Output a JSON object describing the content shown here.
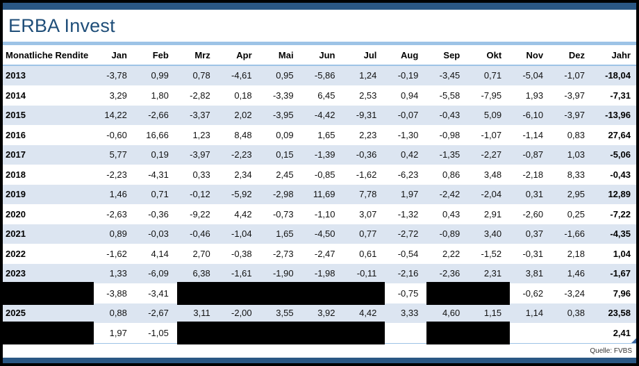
{
  "title": "ERBA Invest",
  "source_note": "Quelle: FVBS",
  "colors": {
    "navy_bar": "#2A5784",
    "title_text": "#1F4E79",
    "divider_blue": "#9DC3E6",
    "stripe_row": "#DCE5F1",
    "white_row": "#FFFFFF",
    "redaction": "#000000"
  },
  "chart_data": {
    "type": "table",
    "title": "Monatliche Rendite",
    "columns": [
      "Monatliche Rendite",
      "Jan",
      "Feb",
      "Mrz",
      "Apr",
      "Mai",
      "Jun",
      "Jul",
      "Aug",
      "Sep",
      "Okt",
      "Nov",
      "Dez",
      "Jahr"
    ],
    "redaction_note": "null month/year values are covered by black redaction bars; empty strings are blank cells",
    "rows": [
      {
        "year": "2013",
        "months": [
          "-3,78",
          "0,99",
          "0,78",
          "-4,61",
          "0,95",
          "-5,86",
          "1,24",
          "-0,19",
          "-3,45",
          "0,71",
          "-5,04",
          "-1,07"
        ],
        "jahr": "-18,04"
      },
      {
        "year": "2014",
        "months": [
          "3,29",
          "1,80",
          "-2,82",
          "0,18",
          "-3,39",
          "6,45",
          "2,53",
          "0,94",
          "-5,58",
          "-7,95",
          "1,93",
          "-3,97"
        ],
        "jahr": "-7,31"
      },
      {
        "year": "2015",
        "months": [
          "14,22",
          "-2,66",
          "-3,37",
          "2,02",
          "-3,95",
          "-4,42",
          "-9,31",
          "-0,07",
          "-0,43",
          "5,09",
          "-6,10",
          "-3,97"
        ],
        "jahr": "-13,96"
      },
      {
        "year": "2016",
        "months": [
          "-0,60",
          "16,66",
          "1,23",
          "8,48",
          "0,09",
          "1,65",
          "2,23",
          "-1,30",
          "-0,98",
          "-1,07",
          "-1,14",
          "0,83"
        ],
        "jahr": "27,64"
      },
      {
        "year": "2017",
        "months": [
          "5,77",
          "0,19",
          "-3,97",
          "-2,23",
          "0,15",
          "-1,39",
          "-0,36",
          "0,42",
          "-1,35",
          "-2,27",
          "-0,87",
          "1,03"
        ],
        "jahr": "-5,06"
      },
      {
        "year": "2018",
        "months": [
          "-2,23",
          "-4,31",
          "0,33",
          "2,34",
          "2,45",
          "-0,85",
          "-1,62",
          "-6,23",
          "0,86",
          "3,48",
          "-2,18",
          "8,33"
        ],
        "jahr": "-0,43"
      },
      {
        "year": "2019",
        "months": [
          "1,46",
          "0,71",
          "-0,12",
          "-5,92",
          "-2,98",
          "11,69",
          "7,78",
          "1,97",
          "-2,42",
          "-2,04",
          "0,31",
          "2,95"
        ],
        "jahr": "12,89"
      },
      {
        "year": "2020",
        "months": [
          "-2,63",
          "-0,36",
          "-9,22",
          "4,42",
          "-0,73",
          "-1,10",
          "3,07",
          "-1,32",
          "0,43",
          "2,91",
          "-2,60",
          "0,25"
        ],
        "jahr": "-7,22"
      },
      {
        "year": "2021",
        "months": [
          "0,89",
          "-0,03",
          "-0,46",
          "-1,04",
          "1,65",
          "-4,50",
          "0,77",
          "-2,72",
          "-0,89",
          "3,40",
          "0,37",
          "-1,66"
        ],
        "jahr": "-4,35"
      },
      {
        "year": "2022",
        "months": [
          "-1,62",
          "4,14",
          "2,70",
          "-0,38",
          "-2,73",
          "-2,47",
          "0,61",
          "-0,54",
          "2,22",
          "-1,52",
          "-0,31",
          "2,18"
        ],
        "jahr": "1,04"
      },
      {
        "year": "2023",
        "months": [
          "1,33",
          "-6,09",
          "6,38",
          "-1,61",
          "-1,90",
          "-1,98",
          "-0,11",
          "-2,16",
          "-2,36",
          "2,31",
          "3,81",
          "1,46"
        ],
        "jahr": "-1,67"
      },
      {
        "year": null,
        "months": [
          "-3,88",
          "-3,41",
          null,
          null,
          null,
          null,
          null,
          "-0,75",
          null,
          null,
          "-0,62",
          "-3,24"
        ],
        "jahr": "7,96"
      },
      {
        "year": "2025",
        "months": [
          "0,88",
          "-2,67",
          "3,11",
          "-2,00",
          "3,55",
          "3,92",
          "4,42",
          "3,33",
          "4,60",
          "1,15",
          "1,14",
          "0,38"
        ],
        "jahr": "23,58"
      },
      {
        "year": null,
        "months": [
          "1,97",
          "-1,05",
          null,
          null,
          null,
          null,
          null,
          "",
          null,
          null,
          "",
          ""
        ],
        "jahr": "2,41"
      }
    ]
  }
}
